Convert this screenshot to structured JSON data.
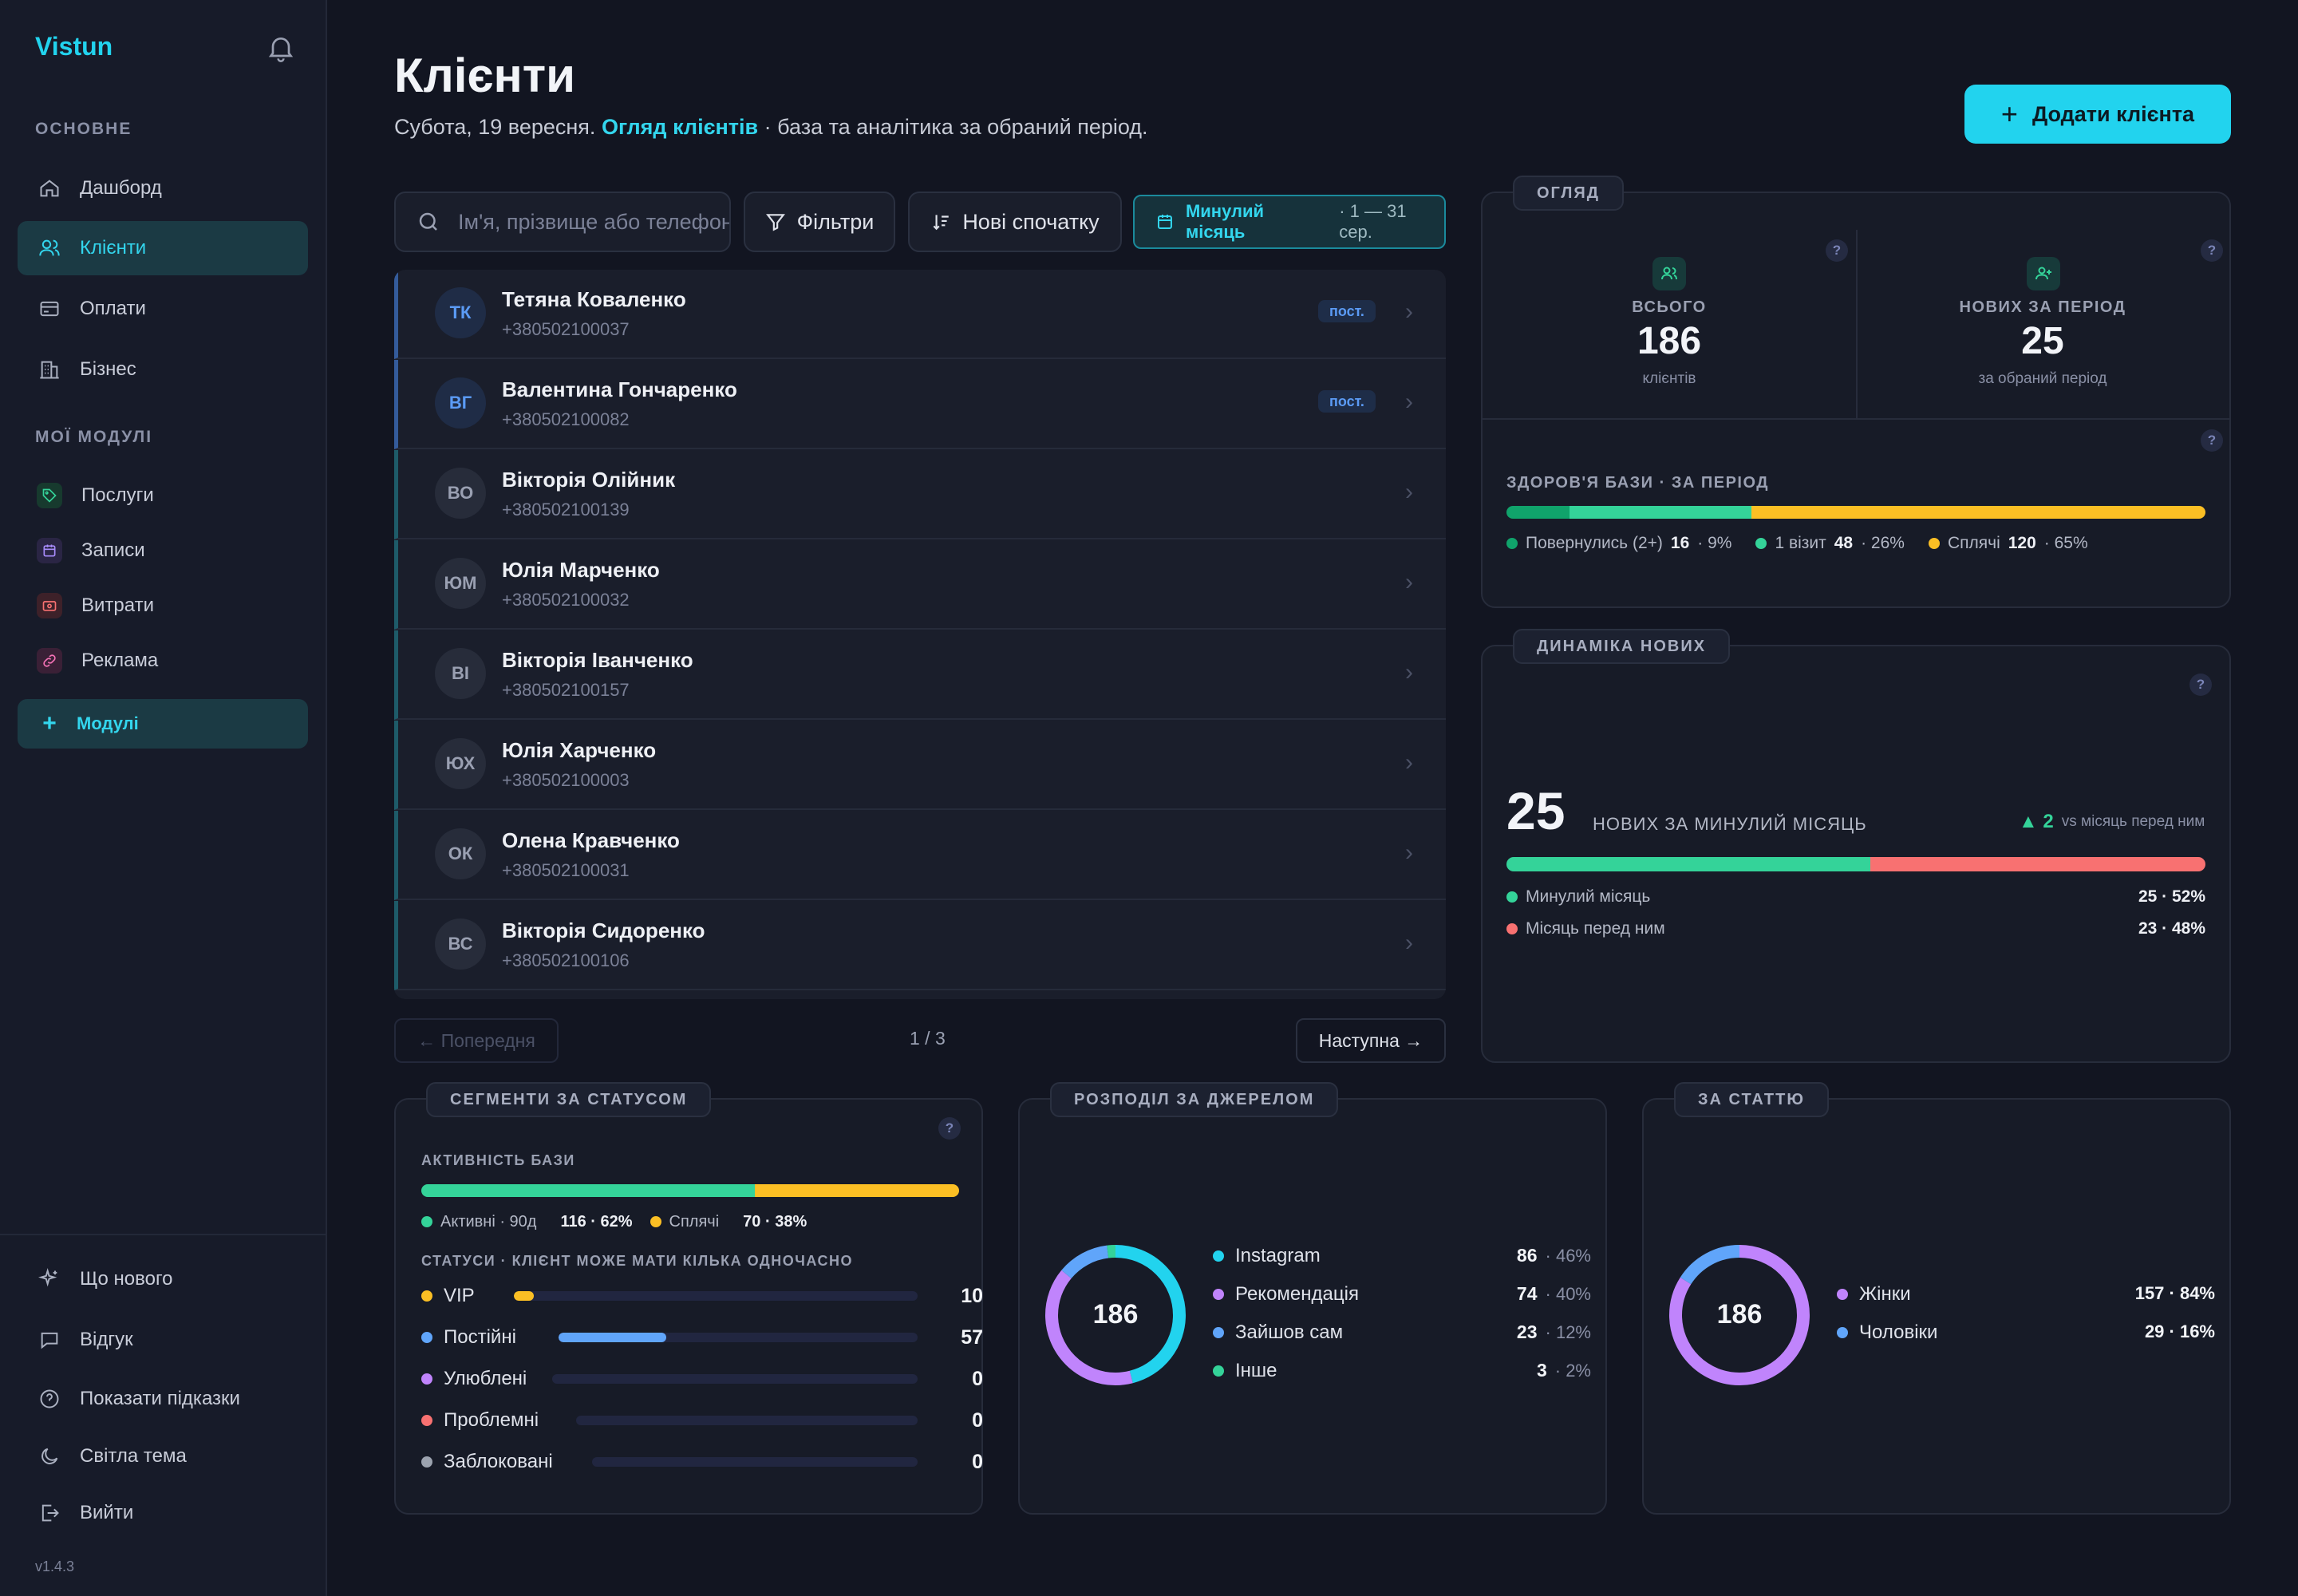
{
  "app": {
    "brand": "Vistun",
    "version": "v1.4.3"
  },
  "sidebar": {
    "section_main": "ОСНОВНЕ",
    "main_items": [
      {
        "label": "Дашборд",
        "icon": "home-icon"
      },
      {
        "label": "Клієнти",
        "icon": "users-icon",
        "active": true
      },
      {
        "label": "Оплати",
        "icon": "card-icon"
      },
      {
        "label": "Бізнес",
        "icon": "building-icon"
      }
    ],
    "section_modules": "МОЇ МОДУЛІ",
    "module_items": [
      {
        "label": "Послуги",
        "icon": "tag-icon",
        "color": "#34d399"
      },
      {
        "label": "Записи",
        "icon": "calendar-icon",
        "color": "#a78bfa"
      },
      {
        "label": "Витрати",
        "icon": "wallet-icon",
        "color": "#f87171"
      },
      {
        "label": "Реклама",
        "icon": "link-icon",
        "color": "#f472b6"
      }
    ],
    "modules_button": "Модулі",
    "bottom_items": [
      {
        "label": "Що нового",
        "icon": "sparkle-icon"
      },
      {
        "label": "Відгук",
        "icon": "chat-icon"
      },
      {
        "label": "Показати підказки",
        "icon": "help-icon"
      },
      {
        "label": "Світла тема",
        "icon": "moon-icon"
      },
      {
        "label": "Вийти",
        "icon": "logout-icon"
      }
    ]
  },
  "header": {
    "title": "Клієнти",
    "subtitle_prefix": "Субота, 19 вересня.",
    "subtitle_accent": "Огляд клієнтів",
    "subtitle_suffix": "· база та аналітика за обраний період.",
    "add_button": "Додати клієнта"
  },
  "toolbar": {
    "search_placeholder": "Ім'я, прізвище або телефон",
    "filters": "Фільтри",
    "sort": "Нові спочатку",
    "period": "Минулий місяць",
    "period_range": "· 1 — 31 сер."
  },
  "clients": [
    {
      "initials": "ТК",
      "name": "Тетяна Коваленко",
      "phone": "+380502100037",
      "badge": "пост.",
      "highlight": true
    },
    {
      "initials": "ВГ",
      "name": "Валентина Гончаренко",
      "phone": "+380502100082",
      "badge": "пост.",
      "highlight": true
    },
    {
      "initials": "ВО",
      "name": "Вікторія Олійник",
      "phone": "+380502100139"
    },
    {
      "initials": "ЮМ",
      "name": "Юлія Марченко",
      "phone": "+380502100032"
    },
    {
      "initials": "ВІ",
      "name": "Вікторія Іванченко",
      "phone": "+380502100157"
    },
    {
      "initials": "ЮХ",
      "name": "Юлія Харченко",
      "phone": "+380502100003"
    },
    {
      "initials": "ОК",
      "name": "Олена Кравченко",
      "phone": "+380502100031"
    },
    {
      "initials": "ВС",
      "name": "Вікторія Сидоренко",
      "phone": "+380502100106"
    }
  ],
  "pagination": {
    "prev": "← Попередня",
    "page": "1 / 3",
    "next": "Наступна →"
  },
  "overview": {
    "tag": "ОГЛЯД",
    "total_label": "ВСЬОГО",
    "total_value": "186",
    "total_sub": "клієнтів",
    "new_label": "НОВИХ ЗА ПЕРІОД",
    "new_value": "25",
    "new_sub": "за обраний період",
    "health_label": "ЗДОРОВ'Я БАЗИ · ЗА ПЕРІОД",
    "health": [
      {
        "label": "Повернулись (2+)",
        "value": "16",
        "pct": "· 9%",
        "share": 9,
        "color": "#10a36b"
      },
      {
        "label": "1 візит",
        "value": "48",
        "pct": "· 26%",
        "share": 26,
        "color": "#34d399"
      },
      {
        "label": "Сплячі",
        "value": "120",
        "pct": "· 65%",
        "share": 65,
        "color": "#fbbf24"
      }
    ]
  },
  "dynamics": {
    "tag": "ДИНАМІКА НОВИХ",
    "value": "25",
    "label": "НОВИХ ЗА МИНУЛИЙ МІСЯЦЬ",
    "delta": "▲ 2",
    "delta_note": "vs місяць перед ним",
    "rows": [
      {
        "label": "Минулий місяць",
        "value": "25 · 52%",
        "share": 52,
        "color": "#34d399"
      },
      {
        "label": "Місяць перед ним",
        "value": "23 · 48%",
        "share": 48,
        "color": "#f87171"
      }
    ]
  },
  "segments": {
    "tag": "СЕГМЕНТИ ЗА СТАТУСОМ",
    "activity_label": "АКТИВНІСТЬ БАЗИ",
    "activity": [
      {
        "label": "Активні · 90д",
        "value": "116 · 62%",
        "share": 62,
        "color": "#34d399"
      },
      {
        "label": "Сплячі",
        "value": "70 · 38%",
        "share": 38,
        "color": "#fbbf24"
      }
    ],
    "statuses_label": "СТАТУСИ · КЛІЄНТ МОЖЕ МАТИ КІЛЬКА ОДНОЧАСНО",
    "statuses": [
      {
        "label": "VIP",
        "value": "10",
        "share": 5,
        "color": "#fbbf24"
      },
      {
        "label": "Постійні",
        "value": "57",
        "share": 30,
        "color": "#60a5fa"
      },
      {
        "label": "Улюблені",
        "value": "0",
        "share": 0,
        "color": "#c084fc"
      },
      {
        "label": "Проблемні",
        "value": "0",
        "share": 0,
        "color": "#f87171"
      },
      {
        "label": "Заблоковані",
        "value": "0",
        "share": 0,
        "color": "#9ca3af"
      }
    ]
  },
  "sources": {
    "tag": "РОЗПОДІЛ ЗА ДЖЕРЕЛОМ",
    "total": "186",
    "items": [
      {
        "label": "Instagram",
        "value": "86",
        "pct": "· 46%",
        "share": 46,
        "color": "#22d3ee"
      },
      {
        "label": "Рекомендація",
        "value": "74",
        "pct": "· 40%",
        "share": 40,
        "color": "#c084fc"
      },
      {
        "label": "Зайшов сам",
        "value": "23",
        "pct": "· 12%",
        "share": 12,
        "color": "#60a5fa"
      },
      {
        "label": "Інше",
        "value": "3",
        "pct": "· 2%",
        "share": 2,
        "color": "#34d399"
      }
    ]
  },
  "gender": {
    "tag": "ЗА СТАТТЮ",
    "total": "186",
    "items": [
      {
        "label": "Жінки",
        "value": "157 · 84%",
        "share": 84,
        "color": "#c084fc"
      },
      {
        "label": "Чоловіки",
        "value": "29 · 16%",
        "share": 16,
        "color": "#60a5fa"
      }
    ]
  }
}
